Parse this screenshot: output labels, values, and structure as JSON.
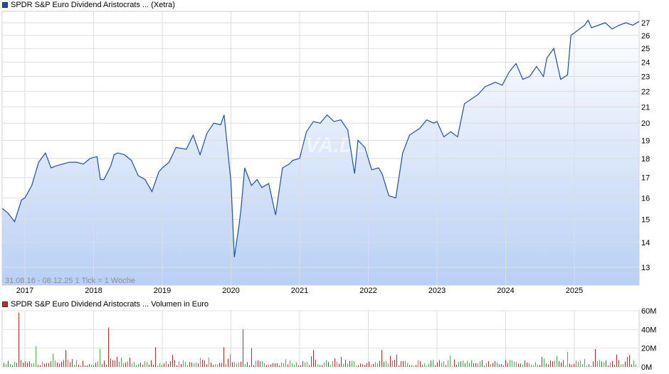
{
  "chart_data": [
    {
      "type": "line",
      "title": "SPDR S&P Euro Dividend Aristocrats ... (Xetra)",
      "info": "31.08.16 - 08.12.25    1 Tick = 1 Woche",
      "watermark": "ARIVA.DE",
      "x_tick_labels": [
        "2017",
        "2018",
        "2019",
        "2020",
        "2021",
        "2022",
        "2023",
        "2024",
        "2025"
      ],
      "y_tick_labels": [
        "13",
        "14",
        "15",
        "16",
        "17",
        "18",
        "19",
        "20",
        "21",
        "22",
        "23",
        "24",
        "25",
        "26",
        "27"
      ],
      "ylim": [
        12.6,
        27.6
      ],
      "yscale": "log",
      "grid": true,
      "line_color": "#1e4fa8",
      "x": [
        2016.67,
        2016.75,
        2016.85,
        2016.95,
        2017.0,
        2017.1,
        2017.2,
        2017.3,
        2017.38,
        2017.45,
        2017.55,
        2017.65,
        2017.75,
        2017.85,
        2017.95,
        2018.05,
        2018.1,
        2018.15,
        2018.25,
        2018.3,
        2018.35,
        2018.45,
        2018.55,
        2018.65,
        2018.75,
        2018.85,
        2018.95,
        2019.0,
        2019.1,
        2019.2,
        2019.35,
        2019.45,
        2019.55,
        2019.65,
        2019.75,
        2019.85,
        2019.9,
        2020.0,
        2020.05,
        2020.12,
        2020.15,
        2020.2,
        2020.3,
        2020.38,
        2020.45,
        2020.55,
        2020.65,
        2020.75,
        2020.8,
        2020.85,
        2020.9,
        2021.0,
        2021.1,
        2021.2,
        2021.3,
        2021.4,
        2021.5,
        2021.6,
        2021.7,
        2021.8,
        2021.85,
        2021.95,
        2022.05,
        2022.15,
        2022.2,
        2022.3,
        2022.4,
        2022.5,
        2022.6,
        2022.75,
        2022.85,
        2022.95,
        2023.0,
        2023.1,
        2023.2,
        2023.3,
        2023.4,
        2023.5,
        2023.6,
        2023.7,
        2023.8,
        2023.85,
        2023.95,
        2024.05,
        2024.15,
        2024.25,
        2024.35,
        2024.45,
        2024.55,
        2024.6,
        2024.7,
        2024.8,
        2024.9,
        2024.95,
        2025.05,
        2025.15,
        2025.2,
        2025.25,
        2025.35,
        2025.45,
        2025.55,
        2025.65,
        2025.75,
        2025.85,
        2025.94
      ],
      "y": [
        15.5,
        15.3,
        14.9,
        15.9,
        16.0,
        16.6,
        17.8,
        18.3,
        17.5,
        17.6,
        17.7,
        17.8,
        17.8,
        17.7,
        18.0,
        18.1,
        16.9,
        16.9,
        17.6,
        18.2,
        18.3,
        18.2,
        17.9,
        17.1,
        16.9,
        16.3,
        17.3,
        17.5,
        17.8,
        18.6,
        18.5,
        19.3,
        18.2,
        19.4,
        20.0,
        19.9,
        20.5,
        16.8,
        13.4,
        14.8,
        15.6,
        17.5,
        16.6,
        16.9,
        16.5,
        16.7,
        15.2,
        17.5,
        17.6,
        17.7,
        17.9,
        18.0,
        19.5,
        20.1,
        20.0,
        20.5,
        20.1,
        20.2,
        19.6,
        17.2,
        19.0,
        18.6,
        17.4,
        17.5,
        17.2,
        16.1,
        16.0,
        18.3,
        19.3,
        19.7,
        20.2,
        20.0,
        20.1,
        19.2,
        19.5,
        19.2,
        21.2,
        21.5,
        21.8,
        22.3,
        22.5,
        22.6,
        22.4,
        23.3,
        23.9,
        22.8,
        23.0,
        23.7,
        23.0,
        24.3,
        25.0,
        22.8,
        23.1,
        26.0,
        26.4,
        26.8,
        27.2,
        26.6,
        26.8,
        27.0,
        26.5,
        26.8,
        27.0,
        26.8,
        27.1
      ]
    },
    {
      "type": "bar",
      "title": "SPDR S&P Euro Dividend Aristocrats ... Volumen in Euro",
      "y_tick_labels": [
        "0M",
        "20M",
        "40M",
        "60M"
      ],
      "ylim": [
        0,
        60
      ],
      "grid": true,
      "colors": {
        "up": "#4caf50",
        "down": "#c62828"
      },
      "volume_baseline_M": 4,
      "volume_spikes": [
        {
          "x": 2016.9,
          "value": 58
        },
        {
          "x": 2017.15,
          "value": 22
        },
        {
          "x": 2017.6,
          "value": 18
        },
        {
          "x": 2018.1,
          "value": 19
        },
        {
          "x": 2018.2,
          "value": 42
        },
        {
          "x": 2018.9,
          "value": 21
        },
        {
          "x": 2019.9,
          "value": 21
        },
        {
          "x": 2020.17,
          "value": 40
        },
        {
          "x": 2020.3,
          "value": 20
        },
        {
          "x": 2021.2,
          "value": 18
        },
        {
          "x": 2022.2,
          "value": 18
        },
        {
          "x": 2023.2,
          "value": 12
        },
        {
          "x": 2024.9,
          "value": 16
        },
        {
          "x": 2025.3,
          "value": 19
        },
        {
          "x": 2025.6,
          "value": 13
        }
      ]
    }
  ]
}
